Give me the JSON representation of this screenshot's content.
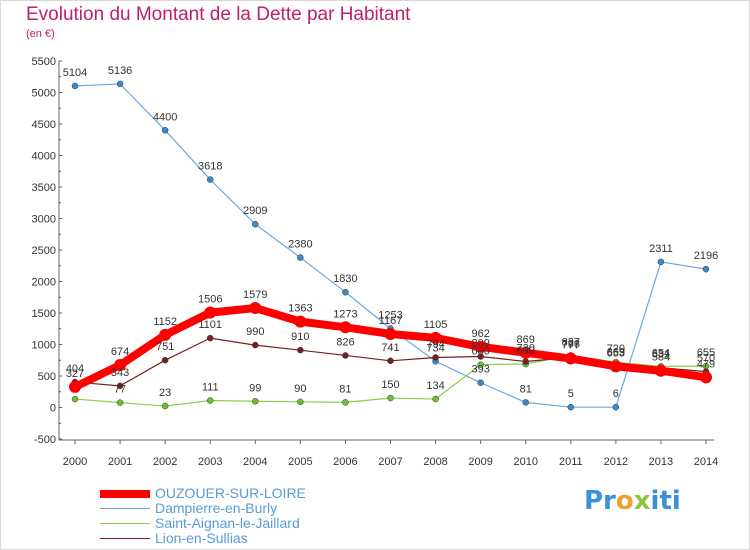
{
  "title": "Evolution du Montant de la Dette par Habitant",
  "subtitle": "(en €)",
  "logo": {
    "p": "Pr",
    "o": "o",
    "x": "x",
    "i": "iti"
  },
  "chart_data": {
    "type": "line",
    "title": "Evolution du Montant de la Dette par Habitant",
    "ylabel": "(en €)",
    "x": [
      "2000",
      "2001",
      "2002",
      "2003",
      "2004",
      "2005",
      "2006",
      "2007",
      "2008",
      "2009",
      "2010",
      "2011",
      "2012",
      "2013",
      "2014"
    ],
    "ylim": [
      -500,
      5500
    ],
    "yticks": [
      -500,
      0,
      500,
      1000,
      1500,
      2000,
      2500,
      3000,
      3500,
      4000,
      4500,
      5000,
      5500
    ],
    "grid": false,
    "legend": "bottom",
    "series": [
      {
        "name": "OUZOUER-SUR-LOIRE",
        "color": "#ff0000",
        "point_color": "#ff0000",
        "width": 8,
        "radius": 6,
        "values": [
          327,
          674,
          1152,
          1506,
          1579,
          1363,
          1273,
          1167,
          1105,
          962,
          869,
          777,
          653,
          584,
          479
        ],
        "labels": [
          "327",
          "674",
          "1152",
          "1506",
          "1579",
          "1363",
          "1273",
          "1167",
          "1105",
          "962",
          "869",
          "777",
          "653",
          "584",
          "479"
        ]
      },
      {
        "name": "Dampierre-en-Burly",
        "color": "#6aa8de",
        "point_color": "#3b88cc",
        "width": 1.2,
        "radius": 3,
        "values": [
          5104,
          5136,
          4400,
          3618,
          2909,
          2380,
          1830,
          1253,
          734,
          393,
          81,
          5,
          6,
          2311,
          2196
        ],
        "labels": [
          "5104",
          "5136",
          "4400",
          "3618",
          "2909",
          "2380",
          "1830",
          "1253",
          "734",
          "393",
          "81",
          "5",
          "6",
          "2311",
          "2196"
        ]
      },
      {
        "name": "Saint-Aignan-le-Jaillard",
        "color": "#88d04a",
        "point_color": "#6cc030",
        "width": 1.2,
        "radius": 3,
        "values": [
          134,
          77,
          23,
          111,
          99,
          90,
          81,
          150,
          134,
          680,
          690,
          827,
          720,
          654,
          655
        ],
        "labels": [
          "",
          "77",
          "23",
          "111",
          "99",
          "90",
          "81",
          "150",
          "134",
          "680",
          "690",
          "827",
          "720",
          "654",
          "655"
        ]
      },
      {
        "name": "Lion-en-Sullias",
        "color": "#7a1f1f",
        "point_color": "#7a1f1f",
        "width": 1.2,
        "radius": 3,
        "values": [
          404,
          343,
          751,
          1101,
          990,
          910,
          826,
          741,
          794,
          809,
          730,
          796,
          669,
          631,
          570
        ],
        "labels": [
          "404",
          "343",
          "751",
          "1101",
          "990",
          "910",
          "826",
          "741",
          "794",
          "809",
          "730",
          "796",
          "669",
          "631",
          "570"
        ]
      }
    ]
  }
}
